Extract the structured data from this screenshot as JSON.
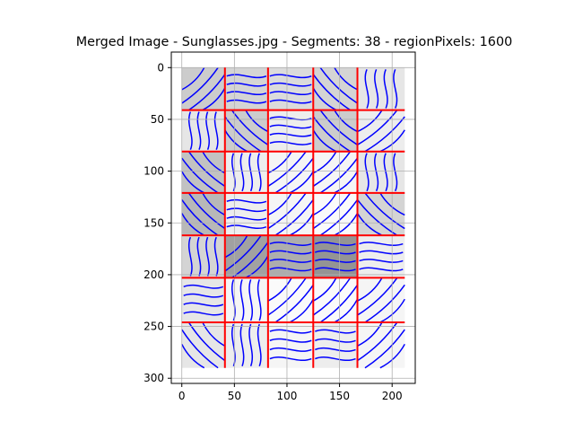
{
  "chart_data": {
    "type": "heatmap",
    "title": "Merged Image - Sunglasses.jpg - Segments: 38 - regionPixels: 1600",
    "xlabel": "",
    "ylabel": "",
    "x_ticks": [
      0,
      50,
      100,
      150,
      200
    ],
    "y_ticks": [
      0,
      50,
      100,
      150,
      200,
      250,
      300
    ],
    "xlim": [
      -10,
      222
    ],
    "ylim": [
      305,
      -15
    ],
    "image_extent": [
      0,
      212,
      0,
      290
    ],
    "y_inverted": true,
    "grid": true,
    "segment_boundary_color": "#ff0000",
    "flow_line_color": "#0000ff",
    "column_edges": [
      0,
      41,
      82,
      125,
      167,
      212
    ],
    "row_edges": [
      0,
      41,
      81,
      121,
      162,
      203,
      246,
      290
    ],
    "cell_gray_levels": [
      [
        0.8,
        0.83,
        0.86,
        0.83,
        0.9
      ],
      [
        0.9,
        0.8,
        0.93,
        0.8,
        0.93
      ],
      [
        0.76,
        0.93,
        0.96,
        0.96,
        0.9
      ],
      [
        0.72,
        0.93,
        0.96,
        0.98,
        0.83
      ],
      [
        0.83,
        0.63,
        0.68,
        0.58,
        0.93
      ],
      [
        0.9,
        0.96,
        0.98,
        0.98,
        0.96
      ],
      [
        0.9,
        0.93,
        0.96,
        0.93,
        0.96
      ]
    ],
    "cell_flow_patterns": [
      [
        "diag",
        "wave_h",
        "wave_h",
        "diag_rev",
        "wave_v"
      ],
      [
        "wave_v",
        "diag_rev",
        "wave_h",
        "diag_rev",
        "diag"
      ],
      [
        "diag_rev",
        "wave_v",
        "diag",
        "diag",
        "wave_v"
      ],
      [
        "diag_rev",
        "wave_h",
        "diag",
        "diag",
        "diag_rev"
      ],
      [
        "wave_v",
        "diag",
        "wave_h",
        "wave_h",
        "wave_h"
      ],
      [
        "wave_h",
        "wave_v",
        "diag",
        "diag",
        "diag"
      ],
      [
        "diag_rev",
        "wave_v",
        "wave_h",
        "wave_h",
        "diag"
      ]
    ]
  }
}
